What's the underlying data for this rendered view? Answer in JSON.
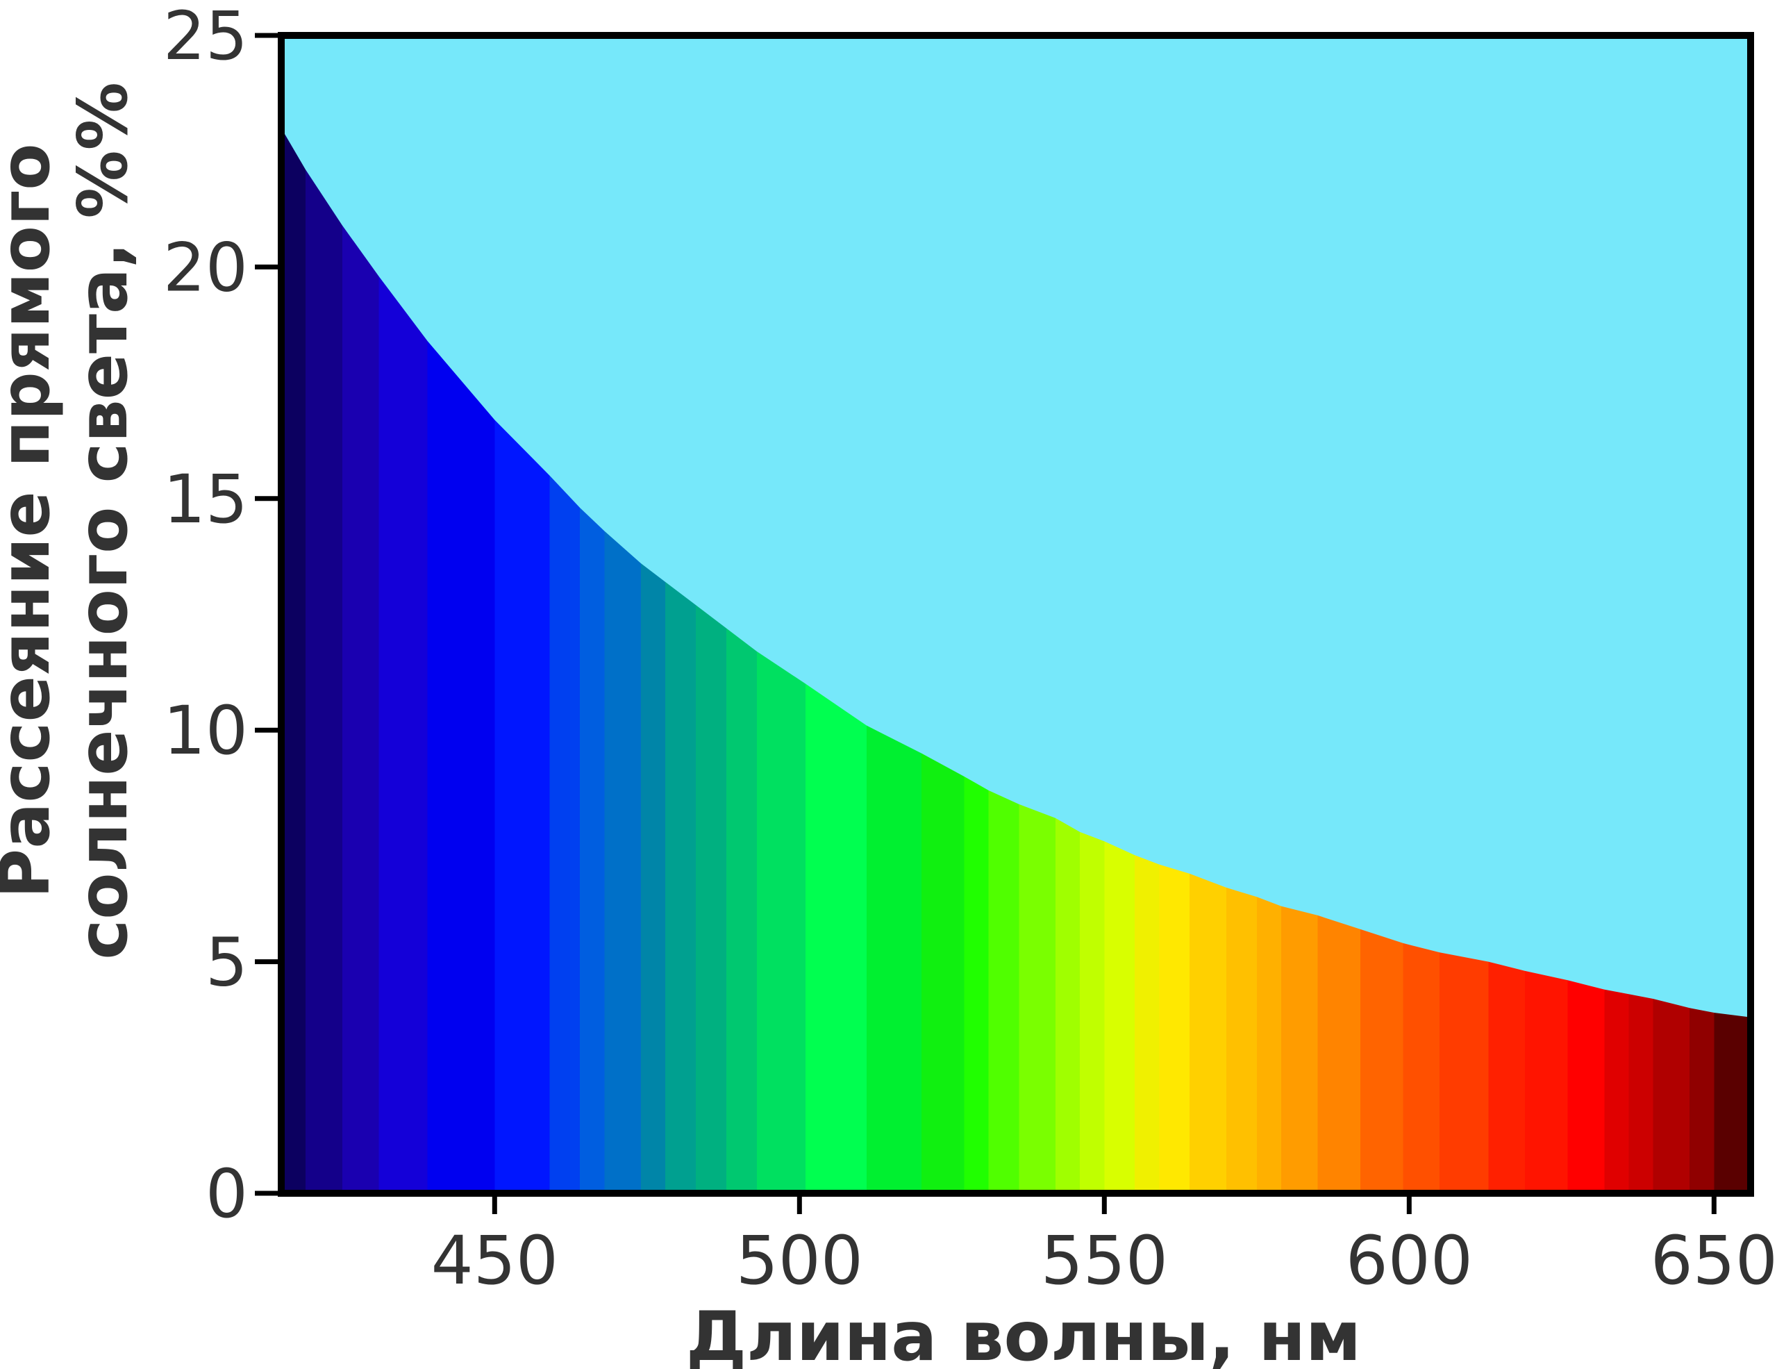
{
  "chart_data": {
    "type": "area",
    "xlabel": "Длина волны, нм",
    "ylabel": [
      "Рассеяние прямого",
      "солнечного света, %%"
    ],
    "background": "#76e8fa",
    "x": [
      415,
      419,
      425,
      431,
      439,
      450,
      459,
      464,
      468,
      474,
      478,
      483,
      488,
      493,
      501,
      511,
      520,
      527,
      531,
      536,
      542,
      546,
      550,
      555,
      559,
      564,
      570,
      575,
      579,
      585,
      592,
      599,
      605,
      613,
      619,
      626,
      632,
      636,
      640,
      646,
      650,
      656
    ],
    "values": [
      23.0,
      22.1,
      20.9,
      19.8,
      18.4,
      16.7,
      15.5,
      14.8,
      14.3,
      13.6,
      13.2,
      12.7,
      12.2,
      11.7,
      11.0,
      10.1,
      9.5,
      9.0,
      8.7,
      8.4,
      8.1,
      7.8,
      7.6,
      7.3,
      7.1,
      6.9,
      6.6,
      6.4,
      6.2,
      6.0,
      5.7,
      5.4,
      5.2,
      5.0,
      4.8,
      4.6,
      4.4,
      4.3,
      4.2,
      4.0,
      3.9,
      3.8
    ],
    "colors": [
      "#0c0060",
      "#14008a",
      "#1a00b0",
      "#1400d8",
      "#0000f0",
      "#0016ff",
      "#0040f0",
      "#005ee0",
      "#0070c8",
      "#0085a8",
      "#00a090",
      "#00b080",
      "#00c870",
      "#00e060",
      "#00ff50",
      "#00f030",
      "#10f010",
      "#20ff00",
      "#50ff00",
      "#7aff00",
      "#a0ff00",
      "#c0ff00",
      "#d8ff00",
      "#f0f000",
      "#ffe800",
      "#ffd000",
      "#ffc000",
      "#ffb000",
      "#ff9c00",
      "#ff8400",
      "#ff6400",
      "#ff5000",
      "#ff3c00",
      "#ff2000",
      "#ff1400",
      "#ff0000",
      "#e00000",
      "#cc0000",
      "#b00000",
      "#900000",
      "#5a0000",
      "#5a0000"
    ],
    "xlim": [
      415,
      656
    ],
    "ylim": [
      0,
      25
    ],
    "xticks": [
      450,
      500,
      550,
      600,
      650
    ],
    "yticks": [
      0,
      5,
      10,
      15,
      20,
      25
    ]
  }
}
